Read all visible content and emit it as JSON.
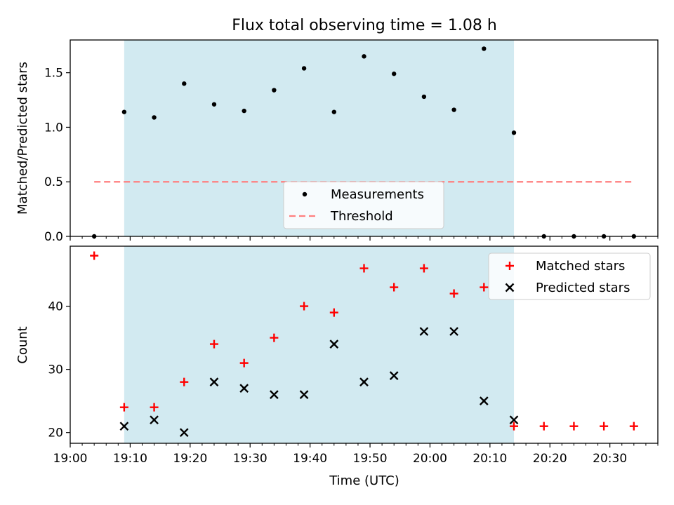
{
  "title": "Flux total observing time = 1.08 h",
  "chart_data": [
    {
      "type": "scatter",
      "ylabel": "Matched/Predicted stars",
      "ylim": [
        0,
        1.8
      ],
      "yticks": [
        0.0,
        0.5,
        1.0,
        1.5
      ],
      "ytick_labels": [
        "0.0",
        "0.5",
        "1.0",
        "1.5"
      ],
      "xlim": [
        "19:00",
        "20:38"
      ],
      "shaded_span": [
        "19:09",
        "20:14"
      ],
      "shade_color": "#add8e6",
      "series": [
        {
          "name": "Measurements",
          "marker": "dot",
          "color": "#000000",
          "x": [
            "19:04",
            "19:09",
            "19:14",
            "19:19",
            "19:24",
            "19:29",
            "19:34",
            "19:39",
            "19:44",
            "19:49",
            "19:54",
            "19:59",
            "20:04",
            "20:09",
            "20:14",
            "20:19",
            "20:24",
            "20:29",
            "20:34"
          ],
          "values": [
            0.0,
            1.14,
            1.09,
            1.4,
            1.21,
            1.15,
            1.34,
            1.54,
            1.14,
            1.65,
            1.49,
            1.28,
            1.16,
            1.72,
            0.95,
            0.0,
            0.0,
            0.0,
            0.0
          ]
        },
        {
          "name": "Threshold",
          "marker": "dashed-line",
          "color": "#ff7f7f",
          "x": [
            "19:04",
            "20:34"
          ],
          "values": [
            0.5,
            0.5
          ]
        }
      ],
      "legend": {
        "placement": "lower-center",
        "entries": [
          "Measurements",
          "Threshold"
        ]
      }
    },
    {
      "type": "scatter",
      "xlabel": "Time (UTC)",
      "ylabel": "Count",
      "ylim": [
        18.3,
        49.5
      ],
      "yticks": [
        20,
        30,
        40
      ],
      "ytick_labels": [
        "20",
        "30",
        "40"
      ],
      "xlim": [
        "19:00",
        "20:38"
      ],
      "xtick_labels": [
        "19:00",
        "19:10",
        "19:20",
        "19:30",
        "19:40",
        "19:50",
        "20:00",
        "20:10",
        "20:20",
        "20:30"
      ],
      "shaded_span": [
        "19:09",
        "20:14"
      ],
      "shade_color": "#add8e6",
      "series": [
        {
          "name": "Matched stars",
          "marker": "plus",
          "color": "#ff0000",
          "x": [
            "19:04",
            "19:09",
            "19:14",
            "19:19",
            "19:24",
            "19:29",
            "19:34",
            "19:39",
            "19:44",
            "19:49",
            "19:54",
            "19:59",
            "20:04",
            "20:09",
            "20:14",
            "20:19",
            "20:24",
            "20:29",
            "20:34"
          ],
          "values": [
            48,
            24,
            24,
            28,
            34,
            31,
            35,
            40,
            39,
            46,
            43,
            46,
            42,
            43,
            21,
            21,
            21,
            21,
            21
          ]
        },
        {
          "name": "Predicted stars",
          "marker": "x",
          "color": "#000000",
          "x": [
            "19:09",
            "19:14",
            "19:19",
            "19:24",
            "19:29",
            "19:34",
            "19:39",
            "19:44",
            "19:49",
            "19:54",
            "19:59",
            "20:04",
            "20:09",
            "20:14"
          ],
          "values": [
            21,
            22,
            20,
            28,
            27,
            26,
            26,
            34,
            28,
            29,
            36,
            36,
            25,
            22
          ]
        }
      ],
      "legend": {
        "placement": "top-right",
        "entries": [
          "Matched stars",
          "Predicted stars"
        ]
      }
    }
  ]
}
